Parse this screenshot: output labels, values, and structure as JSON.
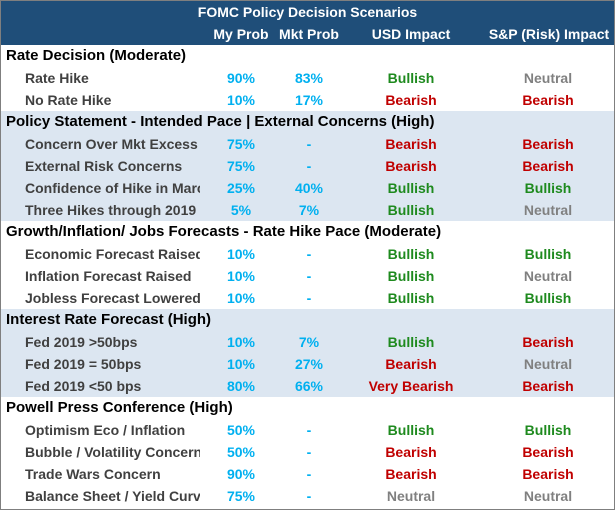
{
  "title": "FOMC Policy Decision Scenarios",
  "headers": {
    "my_prob": "My Prob",
    "mkt_prob": "Mkt Prob",
    "usd": "USD Impact",
    "sp": "S&P (Risk) Impact"
  },
  "colors": {
    "header_bg": "#1f4e79",
    "band": "#dce6f1",
    "prob": "#00b0f0",
    "bullish": "#1e8a1e",
    "bearish": "#c00000",
    "neutral": "#808080"
  },
  "sections": [
    {
      "title": "Rate Decision (Moderate)",
      "rows": [
        {
          "label": "Rate Hike",
          "my": "90%",
          "mkt": "83%",
          "usd": "Bullish",
          "sp": "Neutral"
        },
        {
          "label": "No Rate Hike",
          "my": "10%",
          "mkt": "17%",
          "usd": "Bearish",
          "sp": "Bearish"
        }
      ]
    },
    {
      "title": "Policy Statement - Intended Pace | External Concerns (High)",
      "rows": [
        {
          "label": "Concern Over Mkt Excess",
          "my": "75%",
          "mkt": "-",
          "usd": "Bearish",
          "sp": "Bearish"
        },
        {
          "label": "External Risk Concerns",
          "my": "75%",
          "mkt": "-",
          "usd": "Bearish",
          "sp": "Bearish"
        },
        {
          "label": "Confidence of Hike in March",
          "my": "25%",
          "mkt": "40%",
          "usd": "Bullish",
          "sp": "Bullish"
        },
        {
          "label": "Three Hikes through 2019",
          "my": "5%",
          "mkt": "7%",
          "usd": "Bullish",
          "sp": "Neutral"
        }
      ]
    },
    {
      "title": "Growth/Inflation/ Jobs Forecasts - Rate Hike Pace (Moderate)",
      "rows": [
        {
          "label": "Economic Forecast Raised",
          "my": "10%",
          "mkt": "-",
          "usd": "Bullish",
          "sp": "Bullish"
        },
        {
          "label": "Inflation Forecast Raised",
          "my": "10%",
          "mkt": "-",
          "usd": "Bullish",
          "sp": "Neutral"
        },
        {
          "label": "Jobless Forecast Lowered",
          "my": "10%",
          "mkt": "-",
          "usd": "Bullish",
          "sp": "Bullish"
        }
      ]
    },
    {
      "title": "Interest Rate Forecast (High)",
      "rows": [
        {
          "label": "Fed 2019 >50bps",
          "my": "10%",
          "mkt": "7%",
          "usd": "Bullish",
          "sp": "Bearish"
        },
        {
          "label": "Fed 2019 = 50bps",
          "my": "10%",
          "mkt": "27%",
          "usd": "Bearish",
          "sp": "Neutral"
        },
        {
          "label": "Fed 2019 <50 bps",
          "my": "80%",
          "mkt": "66%",
          "usd": "Very Bearish",
          "sp": "Bearish"
        }
      ]
    },
    {
      "title": "Powell Press Conference (High)",
      "rows": [
        {
          "label": "Optimism  Eco / Inflation",
          "my": "50%",
          "mkt": "-",
          "usd": "Bullish",
          "sp": "Bullish"
        },
        {
          "label": "Bubble / Volatility Concerns",
          "my": "50%",
          "mkt": "-",
          "usd": "Bearish",
          "sp": "Bearish"
        },
        {
          "label": "Trade Wars Concern",
          "my": "90%",
          "mkt": "-",
          "usd": "Bearish",
          "sp": "Bearish"
        },
        {
          "label": "Balance Sheet / Yield Curve",
          "my": "75%",
          "mkt": "-",
          "usd": "Neutral",
          "sp": "Neutral"
        }
      ]
    }
  ]
}
